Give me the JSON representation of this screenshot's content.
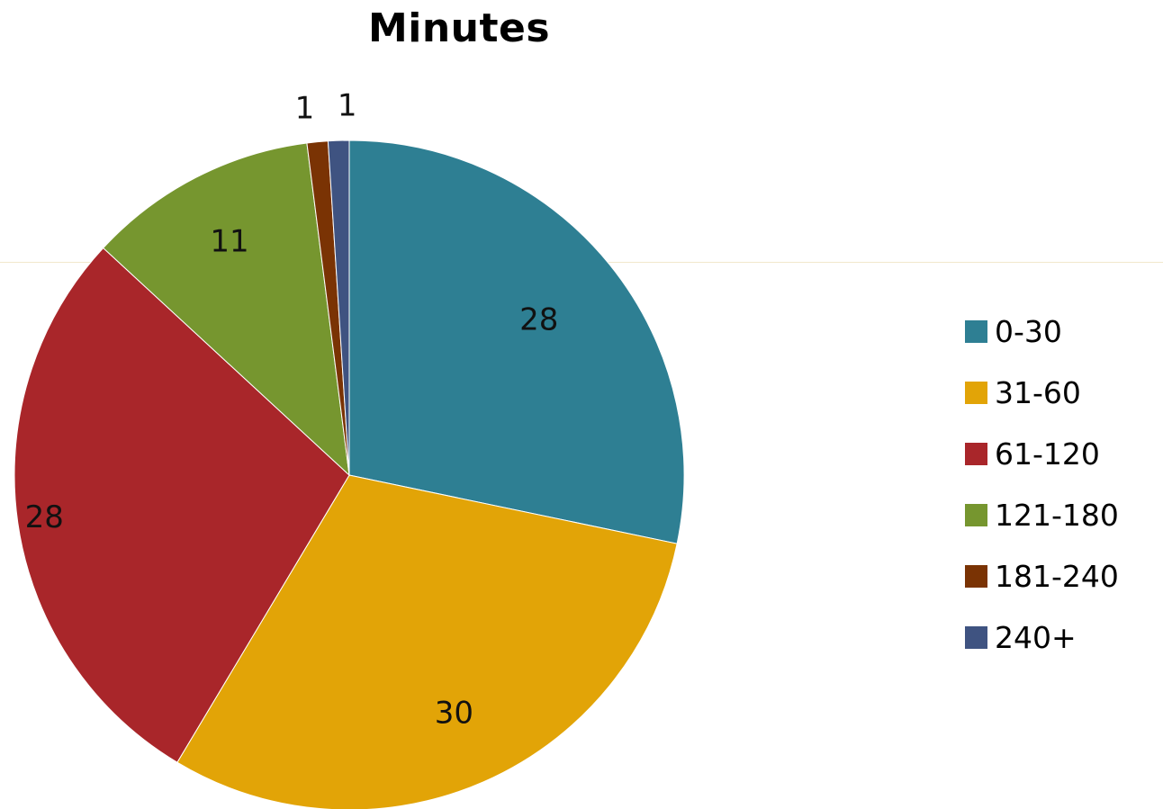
{
  "chart_data": {
    "type": "pie",
    "title": "Minutes",
    "categories": [
      "0-30",
      "31-60",
      "61-120",
      "121-180",
      "181-240",
      "240+"
    ],
    "values": [
      28,
      30,
      28,
      11,
      1,
      1
    ],
    "colors": [
      "#2e7f93",
      "#e2a407",
      "#a9262a",
      "#76962f",
      "#7a3304",
      "#3f5381"
    ],
    "data_labels": [
      "28",
      "30",
      "28",
      "11",
      "1",
      "1"
    ],
    "start_angle_deg": 0,
    "direction": "clockwise",
    "legend_position": "right"
  }
}
